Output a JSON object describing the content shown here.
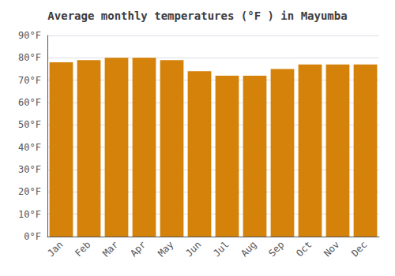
{
  "chart_data": {
    "type": "bar",
    "title": "Average monthly temperatures (°F ) in Mayumba",
    "categories": [
      "Jan",
      "Feb",
      "Mar",
      "Apr",
      "May",
      "Jun",
      "Jul",
      "Aug",
      "Sep",
      "Oct",
      "Nov",
      "Dec"
    ],
    "values": [
      78,
      79,
      80,
      80,
      79,
      74,
      72,
      72,
      75,
      77,
      77,
      77
    ],
    "color": "#D4820A",
    "ylim": [
      0,
      90
    ],
    "yticks": [
      {
        "value": 0,
        "label": "0°F"
      },
      {
        "value": 10,
        "label": "10°F"
      },
      {
        "value": 20,
        "label": "20°F"
      },
      {
        "value": 30,
        "label": "30°F"
      },
      {
        "value": 40,
        "label": "40°F"
      },
      {
        "value": 50,
        "label": "50°F"
      },
      {
        "value": 60,
        "label": "60°F"
      },
      {
        "value": 70,
        "label": "70°F"
      },
      {
        "value": 80,
        "label": "80°F"
      },
      {
        "value": 90,
        "label": "90°F"
      }
    ],
    "grid": true
  }
}
